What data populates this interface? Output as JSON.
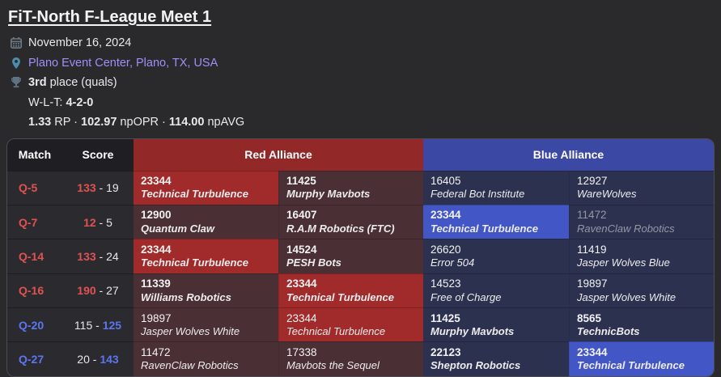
{
  "header": {
    "title": "FiT-North F-League Meet 1",
    "date": "November 16, 2024",
    "location": "Plano Event Center, Plano, TX, USA",
    "placement": {
      "rank": "3rd",
      "rest": " place (quals)"
    },
    "record": {
      "label": "W-L-T: ",
      "value": "4-2-0"
    },
    "stats": [
      {
        "value": "1.33",
        "label": " RP"
      },
      {
        "value": "102.97",
        "label": " npOPR"
      },
      {
        "value": "114.00",
        "label": " npAVG"
      }
    ],
    "stats_separator": " · ",
    "icons": [
      "calendar-icon",
      "location-pin-icon",
      "trophy-icon"
    ]
  },
  "table": {
    "columns": {
      "match": "Match",
      "score": "Score",
      "red": "Red Alliance",
      "blue": "Blue Alliance"
    },
    "score_separator": " - ",
    "rows": [
      {
        "match": "Q-5",
        "winner": "red",
        "red_score": "133",
        "blue_score": "19",
        "red": [
          {
            "number": "23344",
            "name": "Technical Turbulence",
            "highlight": true,
            "bold": true
          },
          {
            "number": "11425",
            "name": "Murphy Mavbots",
            "bold": true
          }
        ],
        "blue": [
          {
            "number": "16405",
            "name": "Federal Bot Institute"
          },
          {
            "number": "12927",
            "name": "WareWolves"
          }
        ]
      },
      {
        "match": "Q-7",
        "winner": "red",
        "red_score": "12",
        "blue_score": "5",
        "red": [
          {
            "number": "12900",
            "name": "Quantum Claw",
            "bold": true
          },
          {
            "number": "16407",
            "name": "R.A.M Robotics (FTC)",
            "bold": true
          }
        ],
        "blue": [
          {
            "number": "23344",
            "name": "Technical Turbulence",
            "highlight": true,
            "bold": true
          },
          {
            "number": "11472",
            "name": "RavenClaw Robotics",
            "dim": true
          }
        ]
      },
      {
        "match": "Q-14",
        "winner": "red",
        "red_score": "133",
        "blue_score": "24",
        "red": [
          {
            "number": "23344",
            "name": "Technical Turbulence",
            "highlight": true,
            "bold": true
          },
          {
            "number": "14524",
            "name": "PESH Bots",
            "bold": true
          }
        ],
        "blue": [
          {
            "number": "26620",
            "name": "Error 504"
          },
          {
            "number": "11419",
            "name": "Jasper Wolves Blue"
          }
        ]
      },
      {
        "match": "Q-16",
        "winner": "red",
        "red_score": "190",
        "blue_score": "27",
        "red": [
          {
            "number": "11339",
            "name": "Williams Robotics",
            "bold": true
          },
          {
            "number": "23344",
            "name": "Technical Turbulence",
            "highlight": true,
            "bold": true
          }
        ],
        "blue": [
          {
            "number": "14523",
            "name": "Free of Charge"
          },
          {
            "number": "19897",
            "name": "Jasper Wolves White"
          }
        ]
      },
      {
        "match": "Q-20",
        "winner": "blue",
        "red_score": "115",
        "blue_score": "125",
        "red": [
          {
            "number": "19897",
            "name": "Jasper Wolves White"
          },
          {
            "number": "23344",
            "name": "Technical Turbulence",
            "highlight": true
          }
        ],
        "blue": [
          {
            "number": "11425",
            "name": "Murphy Mavbots",
            "bold": true
          },
          {
            "number": "8565",
            "name": "TechnicBots",
            "bold": true
          }
        ]
      },
      {
        "match": "Q-27",
        "winner": "blue",
        "red_score": "20",
        "blue_score": "143",
        "red": [
          {
            "number": "11472",
            "name": "RavenClaw Robotics"
          },
          {
            "number": "17338",
            "name": "Mavbots the Sequel"
          }
        ],
        "blue": [
          {
            "number": "22123",
            "name": "Shepton Robotics",
            "bold": true
          },
          {
            "number": "23344",
            "name": "Technical Turbulence",
            "highlight": true,
            "bold": true
          }
        ]
      }
    ]
  },
  "colors": {
    "red_accent": "#e05252",
    "blue_accent": "#5b76f0",
    "red_header": "#932829",
    "blue_header": "#3b49a4",
    "red_highlight": "#a12b2a",
    "blue_highlight": "#4356c6",
    "red_cell": "#4a2f34",
    "blue_cell": "#2c3150",
    "link_purple": "#a18ef7",
    "dim_text": "#9298a3"
  }
}
